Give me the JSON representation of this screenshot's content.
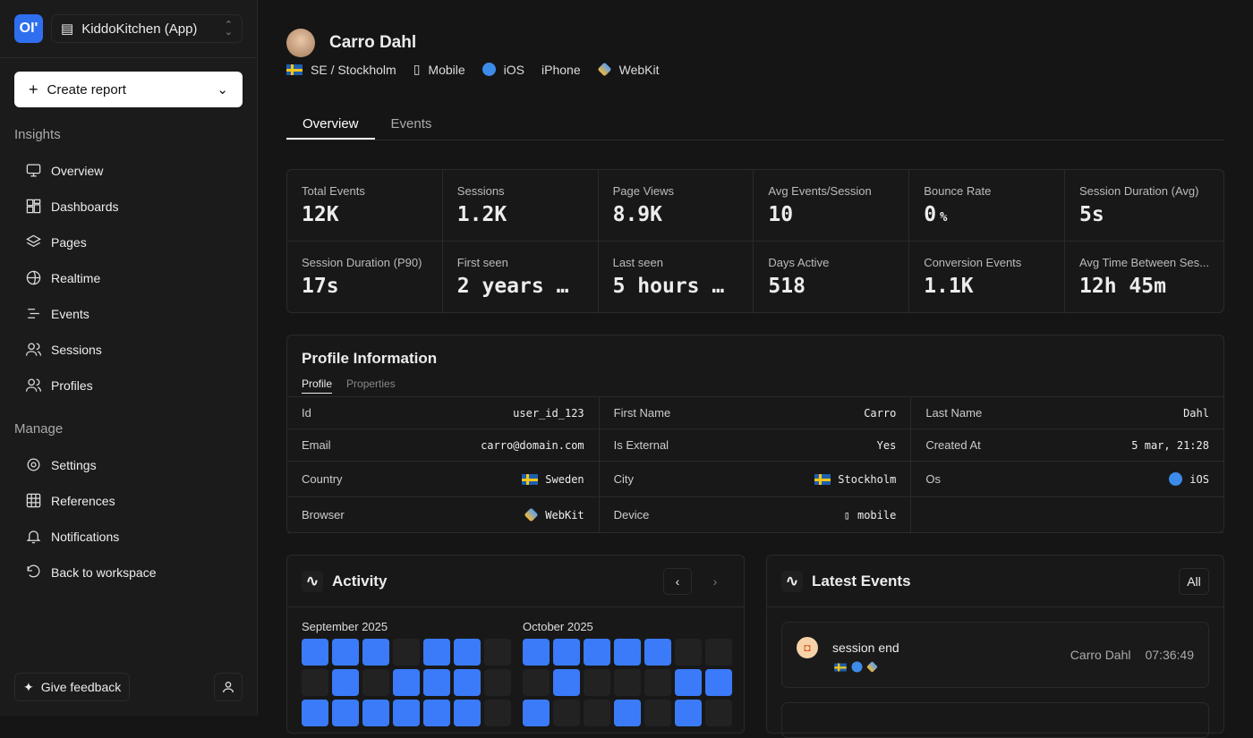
{
  "app": {
    "logo_text": "OP",
    "project": "KiddoKitchen (App)",
    "create_report": "Create report"
  },
  "sidebar": {
    "insights_label": "Insights",
    "insights": [
      {
        "label": "Overview",
        "icon": "monitor-icon"
      },
      {
        "label": "Dashboards",
        "icon": "layout-icon"
      },
      {
        "label": "Pages",
        "icon": "layers-icon"
      },
      {
        "label": "Realtime",
        "icon": "globe-icon"
      },
      {
        "label": "Events",
        "icon": "list-icon"
      },
      {
        "label": "Sessions",
        "icon": "users-icon"
      },
      {
        "label": "Profiles",
        "icon": "users-icon"
      }
    ],
    "manage_label": "Manage",
    "manage": [
      {
        "label": "Settings",
        "icon": "gear-icon"
      },
      {
        "label": "References",
        "icon": "grid-icon"
      },
      {
        "label": "Notifications",
        "icon": "bell-icon"
      },
      {
        "label": "Back to workspace",
        "icon": "undo-icon"
      }
    ],
    "feedback": "Give feedback"
  },
  "profile": {
    "name": "Carro Dahl",
    "location": "SE / Stockholm",
    "device": "Mobile",
    "os": "iOS",
    "model": "iPhone",
    "browser": "WebKit"
  },
  "tabs": [
    {
      "label": "Overview",
      "active": true
    },
    {
      "label": "Events",
      "active": false
    }
  ],
  "stats": [
    {
      "label": "Total Events",
      "value": "12K"
    },
    {
      "label": "Sessions",
      "value": "1.2K"
    },
    {
      "label": "Page Views",
      "value": "8.9K"
    },
    {
      "label": "Avg Events/Session",
      "value": "10"
    },
    {
      "label": "Bounce Rate",
      "value": "0",
      "unit": "%"
    },
    {
      "label": "Session Duration (Avg)",
      "value": "5s"
    },
    {
      "label": "Session Duration (P90)",
      "value": "17s"
    },
    {
      "label": "First seen",
      "value": "2 years …"
    },
    {
      "label": "Last seen",
      "value": "5 hours …"
    },
    {
      "label": "Days Active",
      "value": "518"
    },
    {
      "label": "Conversion Events",
      "value": "1.1K"
    },
    {
      "label": "Avg Time Between Ses...",
      "value": "12h 45m"
    }
  ],
  "profile_info": {
    "title": "Profile Information",
    "tabs": [
      "Profile",
      "Properties"
    ],
    "fields": [
      {
        "label": "Id",
        "value": "user_id_123"
      },
      {
        "label": "First Name",
        "value": "Carro"
      },
      {
        "label": "Last Name",
        "value": "Dahl"
      },
      {
        "label": "Email",
        "value": "carro@domain.com"
      },
      {
        "label": "Is External",
        "value": "Yes"
      },
      {
        "label": "Created At",
        "value": "5 mar, 21:28"
      },
      {
        "label": "Country",
        "value": "Sweden",
        "icon": "flag-se-icon"
      },
      {
        "label": "City",
        "value": "Stockholm",
        "icon": "flag-se-icon"
      },
      {
        "label": "Os",
        "value": "iOS",
        "icon": "ios-icon"
      },
      {
        "label": "Browser",
        "value": "WebKit",
        "icon": "webkit-icon"
      },
      {
        "label": "Device",
        "value": "mobile",
        "icon": "mobile-icon"
      }
    ]
  },
  "activity": {
    "title": "Activity",
    "months": [
      {
        "label": "September 2025",
        "rows": [
          [
            1,
            1,
            1,
            0,
            1,
            1,
            0
          ],
          [
            0,
            1,
            0,
            1,
            1,
            1,
            0
          ],
          [
            1,
            1,
            1,
            1,
            1,
            1,
            0
          ]
        ]
      },
      {
        "label": "October 2025",
        "rows": [
          [
            1,
            1,
            1,
            1,
            1,
            0,
            0
          ],
          [
            0,
            1,
            0,
            0,
            0,
            1,
            1
          ],
          [
            1,
            0,
            0,
            1,
            0,
            1,
            0
          ]
        ]
      }
    ],
    "color": "#3b7bfa"
  },
  "latest_events": {
    "title": "Latest Events",
    "all_button": "All",
    "items": [
      {
        "name": "session end",
        "user": "Carro Dahl",
        "time": "07:36:49"
      }
    ]
  }
}
